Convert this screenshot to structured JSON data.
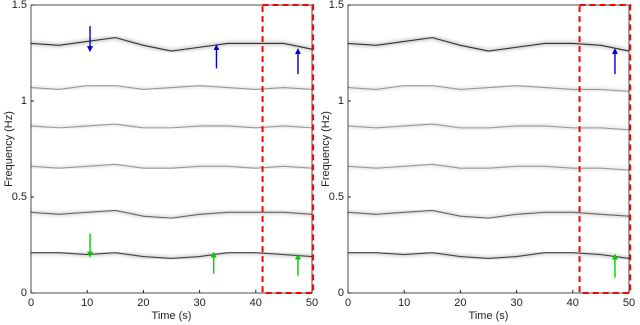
{
  "chart_data": [
    {
      "type": "line",
      "xlabel": "Time (s)",
      "ylabel": "Frequency (Hz)",
      "x": [
        0,
        5,
        10,
        15,
        20,
        25,
        30,
        35,
        40,
        45,
        50
      ],
      "series": [
        {
          "color": "#333333",
          "values": [
            1.3,
            1.29,
            1.31,
            1.33,
            1.29,
            1.26,
            1.28,
            1.3,
            1.3,
            1.3,
            1.27
          ]
        },
        {
          "color": "#999999",
          "values": [
            1.07,
            1.06,
            1.08,
            1.08,
            1.06,
            1.07,
            1.08,
            1.07,
            1.06,
            1.07,
            1.06
          ]
        },
        {
          "color": "#999999",
          "values": [
            0.87,
            0.86,
            0.87,
            0.88,
            0.86,
            0.86,
            0.87,
            0.87,
            0.86,
            0.87,
            0.86
          ]
        },
        {
          "color": "#999999",
          "values": [
            0.66,
            0.65,
            0.66,
            0.67,
            0.65,
            0.65,
            0.66,
            0.66,
            0.65,
            0.66,
            0.65
          ]
        },
        {
          "color": "#666666",
          "values": [
            0.42,
            0.41,
            0.42,
            0.43,
            0.4,
            0.39,
            0.41,
            0.42,
            0.42,
            0.42,
            0.41
          ]
        },
        {
          "color": "#444444",
          "values": [
            0.21,
            0.21,
            0.2,
            0.21,
            0.19,
            0.18,
            0.19,
            0.21,
            0.21,
            0.2,
            0.19
          ]
        }
      ],
      "xlim": [
        0,
        50
      ],
      "ylim": [
        0,
        1.5
      ],
      "xticks": [
        0,
        10,
        20,
        30,
        40,
        50
      ],
      "yticks": [
        0,
        0.5,
        1,
        1.5
      ],
      "highlight": {
        "x": [
          41.2,
          50.2
        ],
        "y": [
          0,
          1.5
        ],
        "color": "#ff0000"
      },
      "arrows": [
        {
          "x": 10.5,
          "y_from": 1.39,
          "y_to": 1.27,
          "color": "#0000cc"
        },
        {
          "x": 33,
          "y_from": 1.17,
          "y_to": 1.28,
          "color": "#0000cc"
        },
        {
          "x": 47.5,
          "y_from": 1.14,
          "y_to": 1.26,
          "color": "#0000cc"
        },
        {
          "x": 10.5,
          "y_from": 0.31,
          "y_to": 0.2,
          "color": "#00cc00"
        },
        {
          "x": 32.5,
          "y_from": 0.1,
          "y_to": 0.2,
          "color": "#00cc00"
        },
        {
          "x": 47.5,
          "y_from": 0.09,
          "y_to": 0.19,
          "color": "#00cc00"
        }
      ]
    },
    {
      "type": "line",
      "xlabel": "Time (s)",
      "ylabel": "Frequency (Hz)",
      "x": [
        0,
        5,
        10,
        15,
        20,
        25,
        30,
        35,
        40,
        45,
        50
      ],
      "series": [
        {
          "color": "#333333",
          "values": [
            1.3,
            1.29,
            1.31,
            1.33,
            1.29,
            1.26,
            1.28,
            1.3,
            1.3,
            1.29,
            1.26
          ]
        },
        {
          "color": "#999999",
          "values": [
            1.07,
            1.06,
            1.08,
            1.08,
            1.06,
            1.07,
            1.08,
            1.07,
            1.06,
            1.06,
            1.05
          ]
        },
        {
          "color": "#999999",
          "values": [
            0.87,
            0.86,
            0.87,
            0.88,
            0.86,
            0.86,
            0.87,
            0.87,
            0.86,
            0.86,
            0.85
          ]
        },
        {
          "color": "#999999",
          "values": [
            0.66,
            0.65,
            0.66,
            0.67,
            0.65,
            0.65,
            0.66,
            0.66,
            0.65,
            0.65,
            0.64
          ]
        },
        {
          "color": "#666666",
          "values": [
            0.42,
            0.41,
            0.42,
            0.43,
            0.4,
            0.39,
            0.41,
            0.42,
            0.42,
            0.41,
            0.4
          ]
        },
        {
          "color": "#444444",
          "values": [
            0.21,
            0.21,
            0.2,
            0.21,
            0.19,
            0.18,
            0.19,
            0.21,
            0.21,
            0.2,
            0.18
          ]
        }
      ],
      "xlim": [
        0,
        50
      ],
      "ylim": [
        0,
        1.5
      ],
      "xticks": [
        0,
        10,
        20,
        30,
        40,
        50
      ],
      "yticks": [
        0,
        0.5,
        1,
        1.5
      ],
      "highlight": {
        "x": [
          41.2,
          50.2
        ],
        "y": [
          0,
          1.5
        ],
        "color": "#ff0000"
      },
      "arrows": [
        {
          "x": 47.5,
          "y_from": 1.14,
          "y_to": 1.26,
          "color": "#0000cc"
        },
        {
          "x": 47.5,
          "y_from": 0.08,
          "y_to": 0.19,
          "color": "#00cc00"
        }
      ]
    }
  ]
}
